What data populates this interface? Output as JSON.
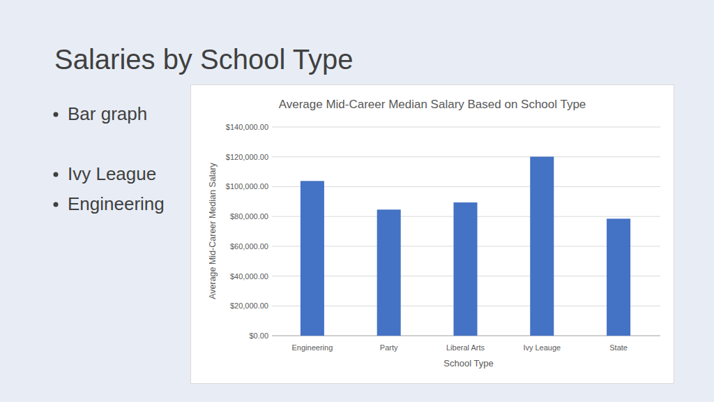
{
  "slide": {
    "title": "Salaries by School Type",
    "bullets": [
      "Bar graph",
      "Ivy League",
      "Engineering"
    ]
  },
  "chart_data": {
    "type": "bar",
    "title": "Average Mid-Career Median Salary Based on School Type",
    "x_label": "School Type",
    "y_label": "Average Mid-Career Median Salary",
    "categories": [
      "Engineering",
      "Party",
      "Liberal Arts",
      "Ivy Leauge",
      "State"
    ],
    "values": [
      103800,
      84600,
      89400,
      120100,
      78500
    ],
    "color": "#4472c4",
    "ylim": [
      0,
      140000
    ],
    "yticks": [
      {
        "value": 0,
        "label": "$0.00"
      },
      {
        "value": 20000,
        "label": "$20,000.00"
      },
      {
        "value": 40000,
        "label": "$40,000.00"
      },
      {
        "value": 60000,
        "label": "$60,000.00"
      },
      {
        "value": 80000,
        "label": "$80,000.00"
      },
      {
        "value": 100000,
        "label": "$100,000.00"
      },
      {
        "value": 120000,
        "label": "$120,000.00"
      },
      {
        "value": 140000,
        "label": "$140,000.00"
      }
    ],
    "grid": true
  }
}
